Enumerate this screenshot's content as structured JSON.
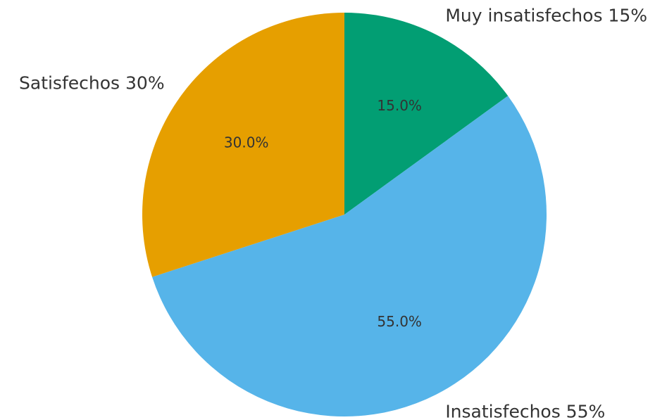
{
  "chart_data": {
    "type": "pie",
    "categories": [
      "Muy insatisfechos 15%",
      "Insatisfechos 55%",
      "Satisfechos 30%"
    ],
    "values": [
      15,
      55,
      30
    ],
    "value_labels": [
      "15.0%",
      "55.0%",
      "30.0%"
    ],
    "colors": [
      "#029e73",
      "#56b4e9",
      "#e69f00"
    ]
  }
}
